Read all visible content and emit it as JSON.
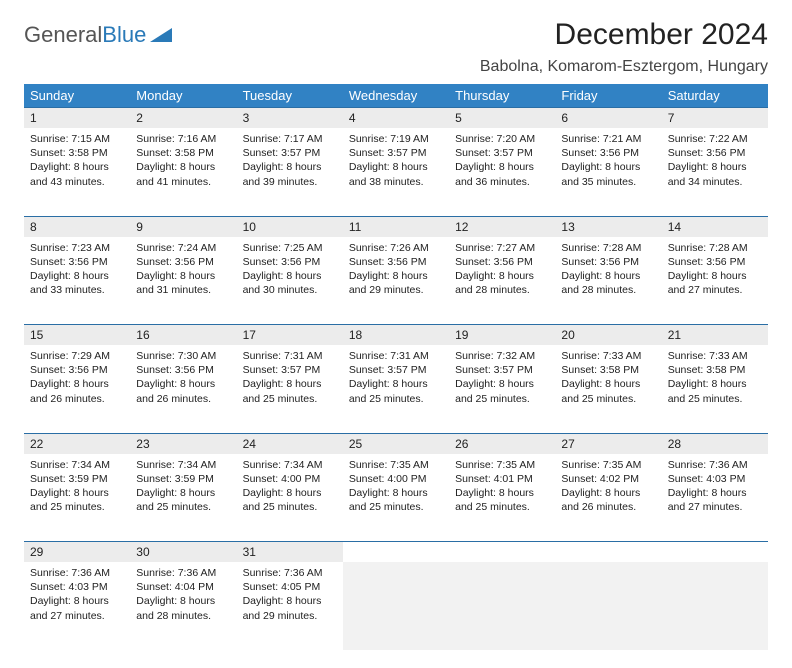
{
  "logo": {
    "text1": "General",
    "text2": "Blue"
  },
  "title": "December 2024",
  "location": "Babolna, Komarom-Esztergom, Hungary",
  "header_bg": "#3182c4",
  "daynum_bg": "#ececec",
  "rule_color": "#2a6ea5",
  "weekdays": [
    "Sunday",
    "Monday",
    "Tuesday",
    "Wednesday",
    "Thursday",
    "Friday",
    "Saturday"
  ],
  "weeks": [
    [
      {
        "n": "1",
        "sr": "7:15 AM",
        "ss": "3:58 PM",
        "dl": "8 hours and 43 minutes."
      },
      {
        "n": "2",
        "sr": "7:16 AM",
        "ss": "3:58 PM",
        "dl": "8 hours and 41 minutes."
      },
      {
        "n": "3",
        "sr": "7:17 AM",
        "ss": "3:57 PM",
        "dl": "8 hours and 39 minutes."
      },
      {
        "n": "4",
        "sr": "7:19 AM",
        "ss": "3:57 PM",
        "dl": "8 hours and 38 minutes."
      },
      {
        "n": "5",
        "sr": "7:20 AM",
        "ss": "3:57 PM",
        "dl": "8 hours and 36 minutes."
      },
      {
        "n": "6",
        "sr": "7:21 AM",
        "ss": "3:56 PM",
        "dl": "8 hours and 35 minutes."
      },
      {
        "n": "7",
        "sr": "7:22 AM",
        "ss": "3:56 PM",
        "dl": "8 hours and 34 minutes."
      }
    ],
    [
      {
        "n": "8",
        "sr": "7:23 AM",
        "ss": "3:56 PM",
        "dl": "8 hours and 33 minutes."
      },
      {
        "n": "9",
        "sr": "7:24 AM",
        "ss": "3:56 PM",
        "dl": "8 hours and 31 minutes."
      },
      {
        "n": "10",
        "sr": "7:25 AM",
        "ss": "3:56 PM",
        "dl": "8 hours and 30 minutes."
      },
      {
        "n": "11",
        "sr": "7:26 AM",
        "ss": "3:56 PM",
        "dl": "8 hours and 29 minutes."
      },
      {
        "n": "12",
        "sr": "7:27 AM",
        "ss": "3:56 PM",
        "dl": "8 hours and 28 minutes."
      },
      {
        "n": "13",
        "sr": "7:28 AM",
        "ss": "3:56 PM",
        "dl": "8 hours and 28 minutes."
      },
      {
        "n": "14",
        "sr": "7:28 AM",
        "ss": "3:56 PM",
        "dl": "8 hours and 27 minutes."
      }
    ],
    [
      {
        "n": "15",
        "sr": "7:29 AM",
        "ss": "3:56 PM",
        "dl": "8 hours and 26 minutes."
      },
      {
        "n": "16",
        "sr": "7:30 AM",
        "ss": "3:56 PM",
        "dl": "8 hours and 26 minutes."
      },
      {
        "n": "17",
        "sr": "7:31 AM",
        "ss": "3:57 PM",
        "dl": "8 hours and 25 minutes."
      },
      {
        "n": "18",
        "sr": "7:31 AM",
        "ss": "3:57 PM",
        "dl": "8 hours and 25 minutes."
      },
      {
        "n": "19",
        "sr": "7:32 AM",
        "ss": "3:57 PM",
        "dl": "8 hours and 25 minutes."
      },
      {
        "n": "20",
        "sr": "7:33 AM",
        "ss": "3:58 PM",
        "dl": "8 hours and 25 minutes."
      },
      {
        "n": "21",
        "sr": "7:33 AM",
        "ss": "3:58 PM",
        "dl": "8 hours and 25 minutes."
      }
    ],
    [
      {
        "n": "22",
        "sr": "7:34 AM",
        "ss": "3:59 PM",
        "dl": "8 hours and 25 minutes."
      },
      {
        "n": "23",
        "sr": "7:34 AM",
        "ss": "3:59 PM",
        "dl": "8 hours and 25 minutes."
      },
      {
        "n": "24",
        "sr": "7:34 AM",
        "ss": "4:00 PM",
        "dl": "8 hours and 25 minutes."
      },
      {
        "n": "25",
        "sr": "7:35 AM",
        "ss": "4:00 PM",
        "dl": "8 hours and 25 minutes."
      },
      {
        "n": "26",
        "sr": "7:35 AM",
        "ss": "4:01 PM",
        "dl": "8 hours and 25 minutes."
      },
      {
        "n": "27",
        "sr": "7:35 AM",
        "ss": "4:02 PM",
        "dl": "8 hours and 26 minutes."
      },
      {
        "n": "28",
        "sr": "7:36 AM",
        "ss": "4:03 PM",
        "dl": "8 hours and 27 minutes."
      }
    ],
    [
      {
        "n": "29",
        "sr": "7:36 AM",
        "ss": "4:03 PM",
        "dl": "8 hours and 27 minutes."
      },
      {
        "n": "30",
        "sr": "7:36 AM",
        "ss": "4:04 PM",
        "dl": "8 hours and 28 minutes."
      },
      {
        "n": "31",
        "sr": "7:36 AM",
        "ss": "4:05 PM",
        "dl": "8 hours and 29 minutes."
      },
      null,
      null,
      null,
      null
    ]
  ],
  "labels": {
    "sunrise": "Sunrise:",
    "sunset": "Sunset:",
    "daylight": "Daylight:"
  }
}
